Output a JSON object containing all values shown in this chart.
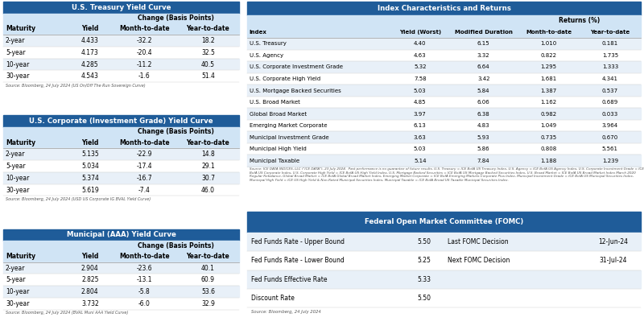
{
  "header_color": "#1F5C99",
  "header_text_color": "#FFFFFF",
  "row_colors": [
    "#E8F0F8",
    "#FFFFFF"
  ],
  "subheader_color": "#D0E4F5",
  "treasury_title": "U.S. Treasury Yield Curve",
  "treasury_headers": [
    "Maturity",
    "Yield",
    "Month-to-date",
    "Year-to-date"
  ],
  "treasury_subheader": "Change (Basis Points)",
  "treasury_rows": [
    [
      "2-year",
      "4.433",
      "-32.2",
      "18.2"
    ],
    [
      "5-year",
      "4.173",
      "-20.4",
      "32.5"
    ],
    [
      "10-year",
      "4.285",
      "-11.2",
      "40.5"
    ],
    [
      "30-year",
      "4.543",
      "-1.6",
      "51.4"
    ]
  ],
  "treasury_source": "Source: Bloomberg, 24 July 2024 (US On/Off The Run Sovereign Curve)",
  "corp_title": "U.S. Corporate (Investment Grade) Yield Curve",
  "corp_headers": [
    "Maturity",
    "Yield",
    "Month-to-date",
    "Year-to-date"
  ],
  "corp_subheader": "Change (Basis Points)",
  "corp_rows": [
    [
      "2-year",
      "5.135",
      "-22.9",
      "14.8"
    ],
    [
      "5-year",
      "5.034",
      "-17.4",
      "29.1"
    ],
    [
      "10-year",
      "5.374",
      "-16.7",
      "30.7"
    ],
    [
      "30-year",
      "5.619",
      "-7.4",
      "46.0"
    ]
  ],
  "corp_source": "Source: Bloomberg, 24 July 2024 (USD US Corporate IG BVAL Yield Curve)",
  "muni_title": "Municipal (AAA) Yield Curve",
  "muni_headers": [
    "Maturity",
    "Yield",
    "Month-to-date",
    "Year-to-date"
  ],
  "muni_subheader": "Change (Basis Points)",
  "muni_rows": [
    [
      "2-year",
      "2.904",
      "-23.6",
      "40.1"
    ],
    [
      "5-year",
      "2.825",
      "-13.1",
      "60.9"
    ],
    [
      "10-year",
      "2.804",
      "-5.8",
      "53.6"
    ],
    [
      "30-year",
      "3.732",
      "-6.0",
      "32.9"
    ]
  ],
  "muni_source": "Source: Bloomberg, 24 July 2024 (BVAL Muni AAA Yield Curve)",
  "index_title": "Index Characteristics and Returns",
  "index_headers": [
    "Index",
    "Yield (Worst)",
    "Modified Duration",
    "Month-to-date",
    "Year-to-date"
  ],
  "index_subheader": "Returns (%)",
  "index_rows": [
    [
      "U.S. Treasury",
      "4.40",
      "6.15",
      "1.010",
      "0.181"
    ],
    [
      "U.S. Agency",
      "4.63",
      "3.32",
      "0.822",
      "1.735"
    ],
    [
      "U.S. Corporate Investment Grade",
      "5.32",
      "6.64",
      "1.295",
      "1.333"
    ],
    [
      "U.S. Corporate High Yield",
      "7.58",
      "3.42",
      "1.681",
      "4.341"
    ],
    [
      "U.S. Mortgage Backed Securities",
      "5.03",
      "5.84",
      "1.387",
      "0.537"
    ],
    [
      "U.S. Broad Market",
      "4.85",
      "6.06",
      "1.162",
      "0.689"
    ],
    [
      "Global Broad Market",
      "3.97",
      "6.38",
      "0.982",
      "0.033"
    ],
    [
      "Emerging Market Corporate",
      "6.13",
      "4.83",
      "1.049",
      "3.964"
    ],
    [
      "Municipal Investment Grade",
      "3.63",
      "5.93",
      "0.735",
      "0.670"
    ],
    [
      "Municipal High Yield",
      "5.03",
      "5.86",
      "0.808",
      "5.561"
    ],
    [
      "Municipal Taxable",
      "5.14",
      "7.84",
      "1.188",
      "1.239"
    ]
  ],
  "index_source": "Source: ICE DATA INDICES, LLC (\"ICE DATA\"), 23 July 2024.  Past performance is no guarantee of future results. U.S. Treasury = ICE BofA US Treasury Index, U.S. Agency = ICE BofA US Agency Index, U.S. Corporate Investment Grade = ICE BofA US Corporate Index, U.S. Corporate High Yield = ICE BofA US High Yield Index, U.S. Mortgage Backed Securities = ICE BofA US Mortgage Backed Securities Index, U.S. Broad Market = ICE BofA US Broad Market Index March 2020 Regular Rebalance, Global Broad Market = ICE BofA Global Broad Market Index, Emerging Market Corporate = ICE BofA Emerging Markets Corporate Plus Index, Municipal Investment Grade = ICE BofA US Municipal Securities Index, Municipal High Yield = ICE US High Yield & Non-Rated Municipal Securities Index, Municipal Taxable = ICE BofA Broad US Taxable Municipal Securities Index.",
  "fomc_title": "Federal Open Market Committee (FOMC)",
  "fomc_rows": [
    [
      "Fed Funds Rate - Upper Bound",
      "5.50",
      "Last FOMC Decision",
      "12-Jun-24"
    ],
    [
      "Fed Funds Rate - Lower Bound",
      "5.25",
      "Next FOMC Decision",
      "31-Jul-24"
    ],
    [
      "Fed Funds Effective Rate",
      "5.33",
      "",
      ""
    ],
    [
      "Discount Rate",
      "5.50",
      "",
      ""
    ]
  ],
  "fomc_source": "Source: Bloomberg, 24 July 2024"
}
